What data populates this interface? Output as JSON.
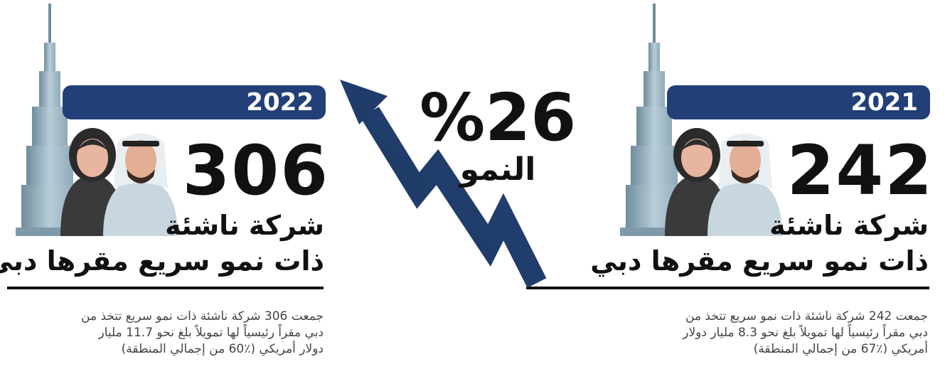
{
  "left": {
    "year": "2022",
    "number": "306",
    "line1": "شركة ناشئة",
    "line2": "ذات نمو سريع مقرها دبي",
    "description": [
      "جمعت 306 شركة ناشئة  ذات نمو سريع تتخذ من",
      "دبي مقراً رئيسياً لها  تمويلاً بلغ نحو 11.7  مليار",
      "دولار أمريكي  (٪60 من إجمالي المنطقة)"
    ]
  },
  "right": {
    "year": "2021",
    "number": "242",
    "line1": "شركة ناشئة",
    "line2": "ذات نمو سريع مقرها دبي",
    "description": [
      "جمعت 242 شركة ناشئة  ذات نمو سريع تتخذ من",
      "دبي مقراً رئيسياً لها  تمويلاً بلغ نحو 8.3  مليار دولار",
      "أمريكي  (٪67 من إجمالي المنطقة)"
    ]
  },
  "growth": {
    "value": "%26",
    "label": "النمو"
  }
}
